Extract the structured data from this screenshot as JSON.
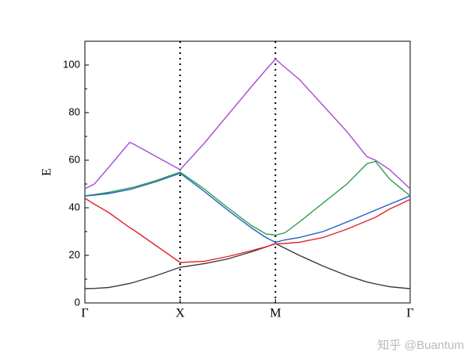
{
  "chart_data": {
    "type": "line",
    "y_label": "E",
    "x": [
      0,
      0.1,
      0.25,
      0.47,
      0.5,
      0.75,
      1,
      1.25,
      1.5,
      1.75,
      1.9,
      2,
      2.1,
      2.25,
      2.5,
      2.75,
      2.96,
      3.05,
      3.2,
      3.414
    ],
    "series": [
      {
        "color": "#3a3a3a",
        "values": [
          6,
          6.1,
          6.5,
          8.2,
          8.5,
          11.5,
          15,
          16.5,
          18.5,
          21.5,
          23.5,
          25,
          23,
          20,
          15.5,
          11.5,
          8.8,
          8,
          6.8,
          6
        ]
      },
      {
        "color": "#e0262a",
        "values": [
          44,
          41.5,
          38,
          31.7,
          31,
          24,
          17,
          17.5,
          19.5,
          22,
          23.6,
          24.8,
          25,
          25.5,
          27.5,
          31,
          34.5,
          36,
          39.5,
          43.5
        ]
      },
      {
        "color": "#2aa04a",
        "values": [
          45,
          45.5,
          46.5,
          48.3,
          48.5,
          51.5,
          55,
          48,
          40,
          32.5,
          29,
          28.5,
          29.5,
          34,
          42,
          50,
          58.5,
          59.5,
          52,
          45
        ]
      },
      {
        "color": "#1f5fc4",
        "values": [
          45,
          45.3,
          46,
          47.7,
          48,
          51,
          54.5,
          47,
          39,
          31.5,
          27.5,
          25.5,
          26.5,
          27.5,
          30,
          34,
          37.5,
          39,
          41.5,
          45
        ]
      },
      {
        "color": "#a64fd6",
        "values": [
          48,
          50,
          57,
          67.5,
          67,
          61.5,
          56,
          67,
          79,
          91,
          98,
          102.5,
          99,
          94,
          83,
          72,
          61.5,
          60,
          56,
          48
        ]
      }
    ],
    "xlim": [
      0,
      3.414
    ],
    "xticks": [
      {
        "value": 0,
        "label": "Γ"
      },
      {
        "value": 1,
        "label": "X"
      },
      {
        "value": 2,
        "label": "M"
      },
      {
        "value": 3.414,
        "label": "Γ"
      }
    ],
    "ylim": [
      0,
      110
    ],
    "yticks": [
      0,
      20,
      40,
      60,
      80,
      100
    ],
    "watermark": "知乎 @Buantum"
  }
}
